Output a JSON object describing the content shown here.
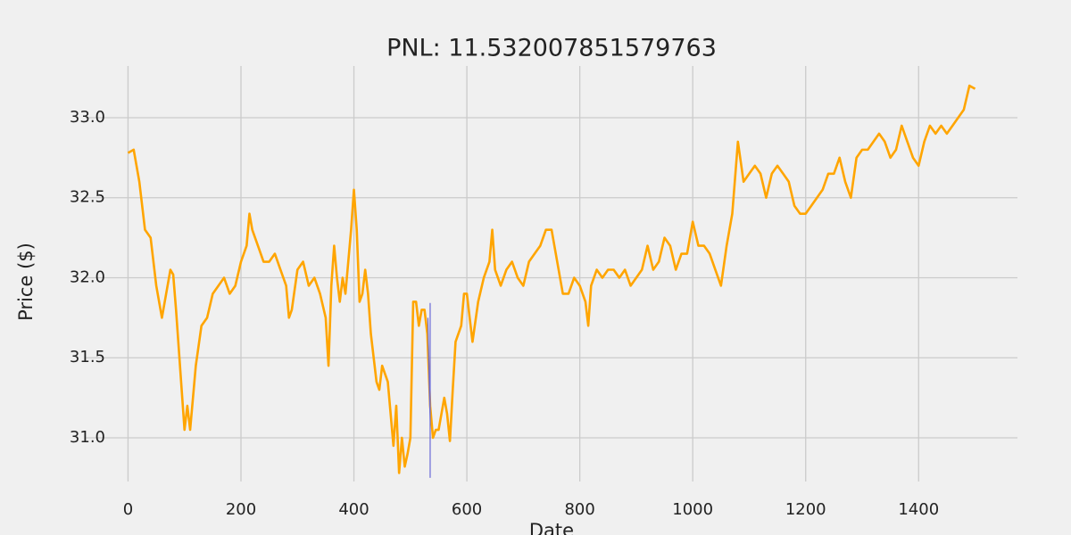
{
  "chart_data": {
    "type": "line",
    "title": "PNL: 11.532007851579763",
    "xlabel": "Date",
    "ylabel": "Price ($)",
    "xlim": [
      -75,
      1575
    ],
    "ylim": [
      30.727,
      33.323
    ],
    "xticks": [
      0,
      200,
      400,
      600,
      800,
      1000,
      1200,
      1400
    ],
    "yticks": [
      {
        "value": 31,
        "label": "31.0"
      },
      31.5,
      {
        "value": 32,
        "label": "32.0"
      },
      32.5,
      {
        "value": 33,
        "label": "33.0"
      }
    ],
    "grid": true,
    "series": [
      {
        "color": "#ffa500",
        "x": [
          0,
          10,
          20,
          30,
          40,
          50,
          60,
          70,
          75,
          80,
          85,
          90,
          95,
          100,
          105,
          110,
          120,
          130,
          140,
          150,
          160,
          170,
          180,
          190,
          200,
          210,
          215,
          220,
          230,
          240,
          250,
          260,
          270,
          280,
          285,
          290,
          300,
          310,
          320,
          330,
          340,
          350,
          355,
          360,
          365,
          370,
          375,
          380,
          385,
          390,
          395,
          400,
          405,
          410,
          415,
          420,
          425,
          430,
          440,
          445,
          450,
          460,
          470,
          475,
          480,
          485,
          490,
          495,
          500,
          505,
          510,
          515,
          520,
          525,
          530,
          535,
          540,
          545,
          550,
          555,
          560,
          565,
          570,
          575,
          580,
          590,
          595,
          600,
          605,
          610,
          620,
          630,
          640,
          645,
          650,
          660,
          670,
          680,
          690,
          700,
          710,
          720,
          730,
          740,
          750,
          760,
          770,
          780,
          790,
          800,
          810,
          815,
          820,
          830,
          840,
          850,
          860,
          870,
          880,
          890,
          900,
          910,
          920,
          930,
          940,
          950,
          960,
          970,
          980,
          990,
          1000,
          1010,
          1020,
          1030,
          1040,
          1050,
          1060,
          1070,
          1080,
          1090,
          1100,
          1110,
          1120,
          1130,
          1140,
          1150,
          1160,
          1170,
          1180,
          1190,
          1200,
          1210,
          1220,
          1230,
          1240,
          1250,
          1260,
          1270,
          1280,
          1290,
          1300,
          1310,
          1320,
          1330,
          1340,
          1350,
          1360,
          1370,
          1380,
          1390,
          1400,
          1410,
          1420,
          1430,
          1440,
          1450,
          1460,
          1470,
          1480,
          1490,
          1500
        ],
        "values": [
          32.78,
          32.8,
          32.6,
          32.3,
          32.25,
          31.95,
          31.75,
          31.95,
          32.05,
          32.02,
          31.8,
          31.55,
          31.3,
          31.05,
          31.2,
          31.05,
          31.45,
          31.7,
          31.75,
          31.9,
          31.95,
          32.0,
          31.9,
          31.95,
          32.1,
          32.2,
          32.4,
          32.3,
          32.2,
          32.1,
          32.1,
          32.15,
          32.05,
          31.95,
          31.75,
          31.8,
          32.05,
          32.1,
          31.95,
          32.0,
          31.9,
          31.75,
          31.45,
          31.95,
          32.2,
          32.0,
          31.85,
          32.0,
          31.9,
          32.1,
          32.3,
          32.55,
          32.3,
          31.85,
          31.9,
          32.05,
          31.9,
          31.65,
          31.35,
          31.3,
          31.45,
          31.35,
          30.95,
          31.2,
          30.78,
          31.0,
          30.82,
          30.9,
          31.0,
          31.85,
          31.85,
          31.7,
          31.8,
          31.8,
          31.65,
          31.2,
          31.0,
          31.05,
          31.05,
          31.15,
          31.25,
          31.15,
          30.98,
          31.3,
          31.6,
          31.7,
          31.9,
          31.9,
          31.75,
          31.6,
          31.85,
          32.0,
          32.1,
          32.3,
          32.05,
          31.95,
          32.05,
          32.1,
          32.0,
          31.95,
          32.1,
          32.15,
          32.2,
          32.3,
          32.3,
          32.1,
          31.9,
          31.9,
          32.0,
          31.95,
          31.85,
          31.7,
          31.95,
          32.05,
          32.0,
          32.05,
          32.05,
          32.0,
          32.05,
          31.95,
          32.0,
          32.05,
          32.2,
          32.05,
          32.1,
          32.25,
          32.2,
          32.05,
          32.15,
          32.15,
          32.35,
          32.2,
          32.2,
          32.15,
          32.05,
          31.95,
          32.2,
          32.4,
          32.85,
          32.6,
          32.65,
          32.7,
          32.65,
          32.5,
          32.65,
          32.7,
          32.65,
          32.6,
          32.45,
          32.4,
          32.4,
          32.45,
          32.5,
          32.55,
          32.65,
          32.65,
          32.75,
          32.6,
          32.5,
          32.75,
          32.8,
          32.8,
          32.85,
          32.9,
          32.85,
          32.75,
          32.8,
          32.95,
          32.85,
          32.75,
          32.7,
          32.85,
          32.95,
          32.9,
          32.95,
          32.9,
          32.95,
          33.0,
          33.05,
          33.2,
          33.18
        ]
      },
      {
        "color": "#6a6ad8",
        "x": [
          531,
          533,
          535,
          535,
          535
        ],
        "values": [
          31.75,
          31.4,
          31.1,
          31.84,
          30.75
        ]
      }
    ]
  }
}
